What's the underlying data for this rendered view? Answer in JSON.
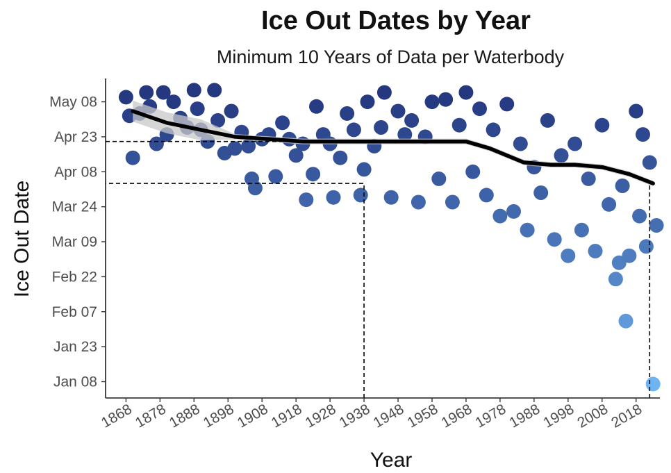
{
  "chart_data": {
    "type": "scatter",
    "title": "Ice Out Dates by Year",
    "subtitle": "Minimum 10 Years of Data per Waterbody",
    "xlabel": "Year",
    "ylabel": "Ice Out Date",
    "xlim": [
      1862,
      2025
    ],
    "ylim": [
      "Jan 01",
      "May 18"
    ],
    "x_ticks": [
      1868,
      1878,
      1888,
      1898,
      1908,
      1918,
      1928,
      1938,
      1948,
      1958,
      1968,
      1978,
      1988,
      1998,
      2008,
      2018
    ],
    "y_ticks": [
      "Jan 08",
      "Jan 23",
      "Feb 07",
      "Feb 22",
      "Mar 09",
      "Mar 24",
      "Apr 08",
      "Apr 23",
      "May 08"
    ],
    "grid": false,
    "legend": "none",
    "colors": {
      "early": "#6fb4f2",
      "late": "#24377f",
      "trend": "#000000",
      "ribbon": "#c8c8c8"
    },
    "trend": {
      "x": [
        1870,
        1880,
        1890,
        1900,
        1910,
        1920,
        1930,
        1940,
        1950,
        1960,
        1968,
        1975,
        1985,
        1993,
        2000,
        2008,
        2016,
        2023
      ],
      "y": [
        "May 04",
        "Apr 29",
        "Apr 26",
        "Apr 23",
        "Apr 22",
        "Apr 21",
        "Apr 21",
        "Apr 21",
        "Apr 21",
        "Apr 21",
        "Apr 21",
        "Apr 18",
        "Apr 12",
        "Apr 11",
        "Apr 11",
        "Apr 10",
        "Apr 07",
        "Apr 03"
      ]
    },
    "reference_lines": [
      {
        "x": 1938,
        "y": "Apr 03"
      },
      {
        "x": 2022,
        "y": "Apr 03"
      },
      {
        "x": 1862,
        "y": "Apr 21"
      }
    ],
    "points": [
      [
        "1868",
        "May 10"
      ],
      [
        "1869",
        "May 02"
      ],
      [
        "1870",
        "Apr 14"
      ],
      [
        "1872",
        "May 03"
      ],
      [
        "1874",
        "May 12"
      ],
      [
        "1875",
        "May 06"
      ],
      [
        "1877",
        "Apr 20"
      ],
      [
        "1879",
        "May 12"
      ],
      [
        "1880",
        "Apr 24"
      ],
      [
        "1882",
        "May 08"
      ],
      [
        "1884",
        "May 01"
      ],
      [
        "1886",
        "Apr 27"
      ],
      [
        "1888",
        "May 13"
      ],
      [
        "1889",
        "May 05"
      ],
      [
        "1890",
        "Apr 26"
      ],
      [
        "1892",
        "Apr 21"
      ],
      [
        "1894",
        "May 13"
      ],
      [
        "1895",
        "Apr 30"
      ],
      [
        "1897",
        "Apr 16"
      ],
      [
        "1899",
        "May 04"
      ],
      [
        "1900",
        "Apr 18"
      ],
      [
        "1902",
        "Apr 25"
      ],
      [
        "1904",
        "Apr 19"
      ],
      [
        "1905",
        "Apr 05"
      ],
      [
        "1906",
        "Apr 01"
      ],
      [
        "1908",
        "Apr 22"
      ],
      [
        "1910",
        "Apr 24"
      ],
      [
        "1912",
        "Apr 06"
      ],
      [
        "1914",
        "Apr 29"
      ],
      [
        "1916",
        "Apr 22"
      ],
      [
        "1918",
        "Apr 15"
      ],
      [
        "1920",
        "Apr 20"
      ],
      [
        "1921",
        "Mar 27"
      ],
      [
        "1923",
        "Apr 07"
      ],
      [
        "1924",
        "May 06"
      ],
      [
        "1926",
        "Apr 24"
      ],
      [
        "1928",
        "Apr 20"
      ],
      [
        "1929",
        "Mar 28"
      ],
      [
        "1931",
        "Apr 14"
      ],
      [
        "1933",
        "May 03"
      ],
      [
        "1935",
        "Apr 26"
      ],
      [
        "1937",
        "Mar 29"
      ],
      [
        "1938",
        "Apr 09"
      ],
      [
        "1939",
        "May 08"
      ],
      [
        "1941",
        "Apr 19"
      ],
      [
        "1943",
        "Apr 27"
      ],
      [
        "1944",
        "May 12"
      ],
      [
        "1946",
        "Mar 28"
      ],
      [
        "1948",
        "May 04"
      ],
      [
        "1950",
        "Apr 24"
      ],
      [
        "1952",
        "Apr 30"
      ],
      [
        "1954",
        "Mar 26"
      ],
      [
        "1956",
        "Apr 23"
      ],
      [
        "1958",
        "May 08"
      ],
      [
        "1960",
        "Apr 05"
      ],
      [
        "1962",
        "May 09"
      ],
      [
        "1964",
        "Mar 26"
      ],
      [
        "1966",
        "Apr 28"
      ],
      [
        "1968",
        "May 12"
      ],
      [
        "1970",
        "Apr 08"
      ],
      [
        "1972",
        "May 05"
      ],
      [
        "1974",
        "Mar 29"
      ],
      [
        "1976",
        "Apr 26"
      ],
      [
        "1978",
        "Mar 20"
      ],
      [
        "1980",
        "May 07"
      ],
      [
        "1982",
        "Mar 22"
      ],
      [
        "1984",
        "Apr 20"
      ],
      [
        "1986",
        "Mar 14"
      ],
      [
        "1988",
        "Apr 10"
      ],
      [
        "1990",
        "Mar 30"
      ],
      [
        "1992",
        "Apr 30"
      ],
      [
        "1994",
        "Mar 10"
      ],
      [
        "1996",
        "Apr 15"
      ],
      [
        "1998",
        "Mar 03"
      ],
      [
        "2000",
        "Apr 20"
      ],
      [
        "2002",
        "Mar 14"
      ],
      [
        "2004",
        "Apr 05"
      ],
      [
        "2006",
        "Mar 05"
      ],
      [
        "2008",
        "Apr 28"
      ],
      [
        "2010",
        "Mar 25"
      ],
      [
        "2012",
        "Feb 21"
      ],
      [
        "2013",
        "Feb 28"
      ],
      [
        "2014",
        "Apr 02"
      ],
      [
        "2015",
        "Feb 03"
      ],
      [
        "2016",
        "Mar 03"
      ],
      [
        "2018",
        "May 04"
      ],
      [
        "2019",
        "Mar 20"
      ],
      [
        "2020",
        "Apr 24"
      ],
      [
        "2021",
        "Mar 07"
      ],
      [
        "2022",
        "Apr 12"
      ],
      [
        "2023",
        "Jan 07"
      ],
      [
        "2024",
        "Mar 16"
      ]
    ]
  }
}
